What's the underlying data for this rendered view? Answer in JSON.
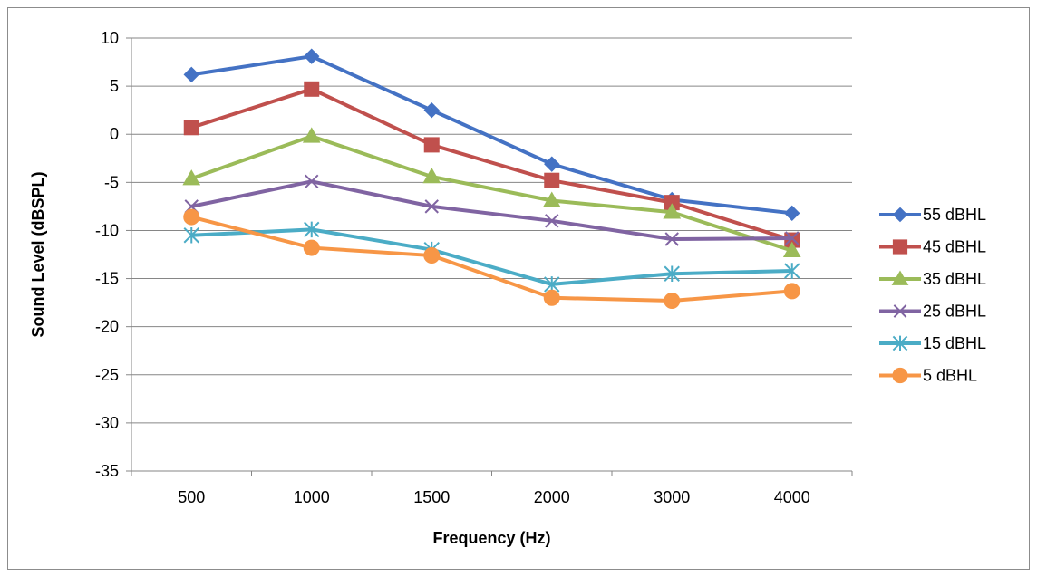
{
  "chart_data": {
    "type": "line",
    "title": "",
    "xlabel": "Frequency (Hz)",
    "ylabel": "Sound Level (dBSPL)",
    "categories": [
      "500",
      "1000",
      "1500",
      "2000",
      "3000",
      "4000"
    ],
    "ylim": [
      -35,
      10
    ],
    "yticks": [
      10,
      5,
      0,
      -5,
      -10,
      -15,
      -20,
      -25,
      -30,
      -35
    ],
    "grid": "horizontal",
    "legend": "right",
    "series": [
      {
        "name": "55 dBHL",
        "color": "#4472c4",
        "marker": "diamond",
        "values": [
          6.2,
          8.1,
          2.5,
          -3.1,
          -6.8,
          -8.2
        ]
      },
      {
        "name": "45 dBHL",
        "color": "#c0504d",
        "marker": "square",
        "values": [
          0.7,
          4.7,
          -1.1,
          -4.8,
          -7.1,
          -11.0
        ]
      },
      {
        "name": "35 dBHL",
        "color": "#9bbb59",
        "marker": "triangle",
        "values": [
          -4.6,
          -0.2,
          -4.4,
          -6.9,
          -8.1,
          -12.1
        ]
      },
      {
        "name": "25 dBHL",
        "color": "#8064a2",
        "marker": "x",
        "values": [
          -7.5,
          -4.9,
          -7.5,
          -9.0,
          -10.9,
          -10.8
        ]
      },
      {
        "name": "15 dBHL",
        "color": "#4bacc6",
        "marker": "star",
        "values": [
          -10.5,
          -9.9,
          -12.0,
          -15.6,
          -14.5,
          -14.2
        ]
      },
      {
        "name": "5 dBHL",
        "color": "#f79646",
        "marker": "circle",
        "values": [
          -8.6,
          -11.8,
          -12.6,
          -17.0,
          -17.3,
          -16.3
        ]
      }
    ]
  }
}
